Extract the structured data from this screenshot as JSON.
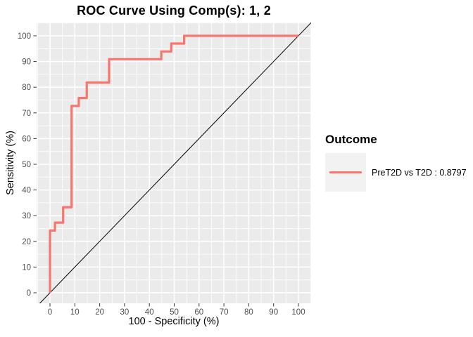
{
  "title": "ROC Curve Using Comp(s): 1, 2",
  "legend": {
    "title": "Outcome",
    "items": [
      {
        "label": "PreT2D vs T2D : 0.8797",
        "comparison": "PreT2D vs T2D",
        "auc": "0.8797",
        "color": "#F8766D"
      }
    ]
  },
  "colors": {
    "curve": "#F8766D",
    "panel_background": "#EBEBEB",
    "gridline": "#FFFFFF",
    "legend_key_background": "#F2F2F2",
    "tick_mark": "#333333",
    "tick_label": "#4D4D4D",
    "axis_title": "#000000",
    "reference_line": "#000000"
  },
  "chart_data": {
    "type": "line",
    "subtype": "roc-step-curve",
    "title": "ROC Curve Using Comp(s): 1, 2",
    "xlabel": "100 - Specificity (%)",
    "ylabel": "Sensitivity (%)",
    "xlim": [
      -5,
      105
    ],
    "ylim": [
      -5,
      105
    ],
    "x_ticks": [
      0,
      10,
      20,
      30,
      40,
      50,
      60,
      70,
      80,
      90,
      100
    ],
    "y_ticks": [
      0,
      10,
      20,
      30,
      40,
      50,
      60,
      70,
      80,
      90,
      100
    ],
    "grid": "major-and-minor-white-on-gray",
    "legend_position": "right",
    "series": [
      {
        "name": "PreT2D vs T2D : 0.8797",
        "auc": 0.8797,
        "color": "#F8766D",
        "step_points": [
          [
            0,
            0
          ],
          [
            0,
            24.2
          ],
          [
            2,
            24.2
          ],
          [
            2,
            27.3
          ],
          [
            5.3,
            27.3
          ],
          [
            5.3,
            33.3
          ],
          [
            8.7,
            33.3
          ],
          [
            8.7,
            72.7
          ],
          [
            11.6,
            72.7
          ],
          [
            11.6,
            75.8
          ],
          [
            14.8,
            75.8
          ],
          [
            14.8,
            81.8
          ],
          [
            23.8,
            81.8
          ],
          [
            23.8,
            90.9
          ],
          [
            44.8,
            90.9
          ],
          [
            44.8,
            93.9
          ],
          [
            48.8,
            93.9
          ],
          [
            48.8,
            97.0
          ],
          [
            54.0,
            97.0
          ],
          [
            54.0,
            100
          ],
          [
            100,
            100
          ]
        ]
      }
    ],
    "reference_line": {
      "type": "diagonal",
      "equation": "y = x",
      "from": [
        0,
        0
      ],
      "to": [
        100,
        100
      ],
      "color": "#000000"
    }
  }
}
